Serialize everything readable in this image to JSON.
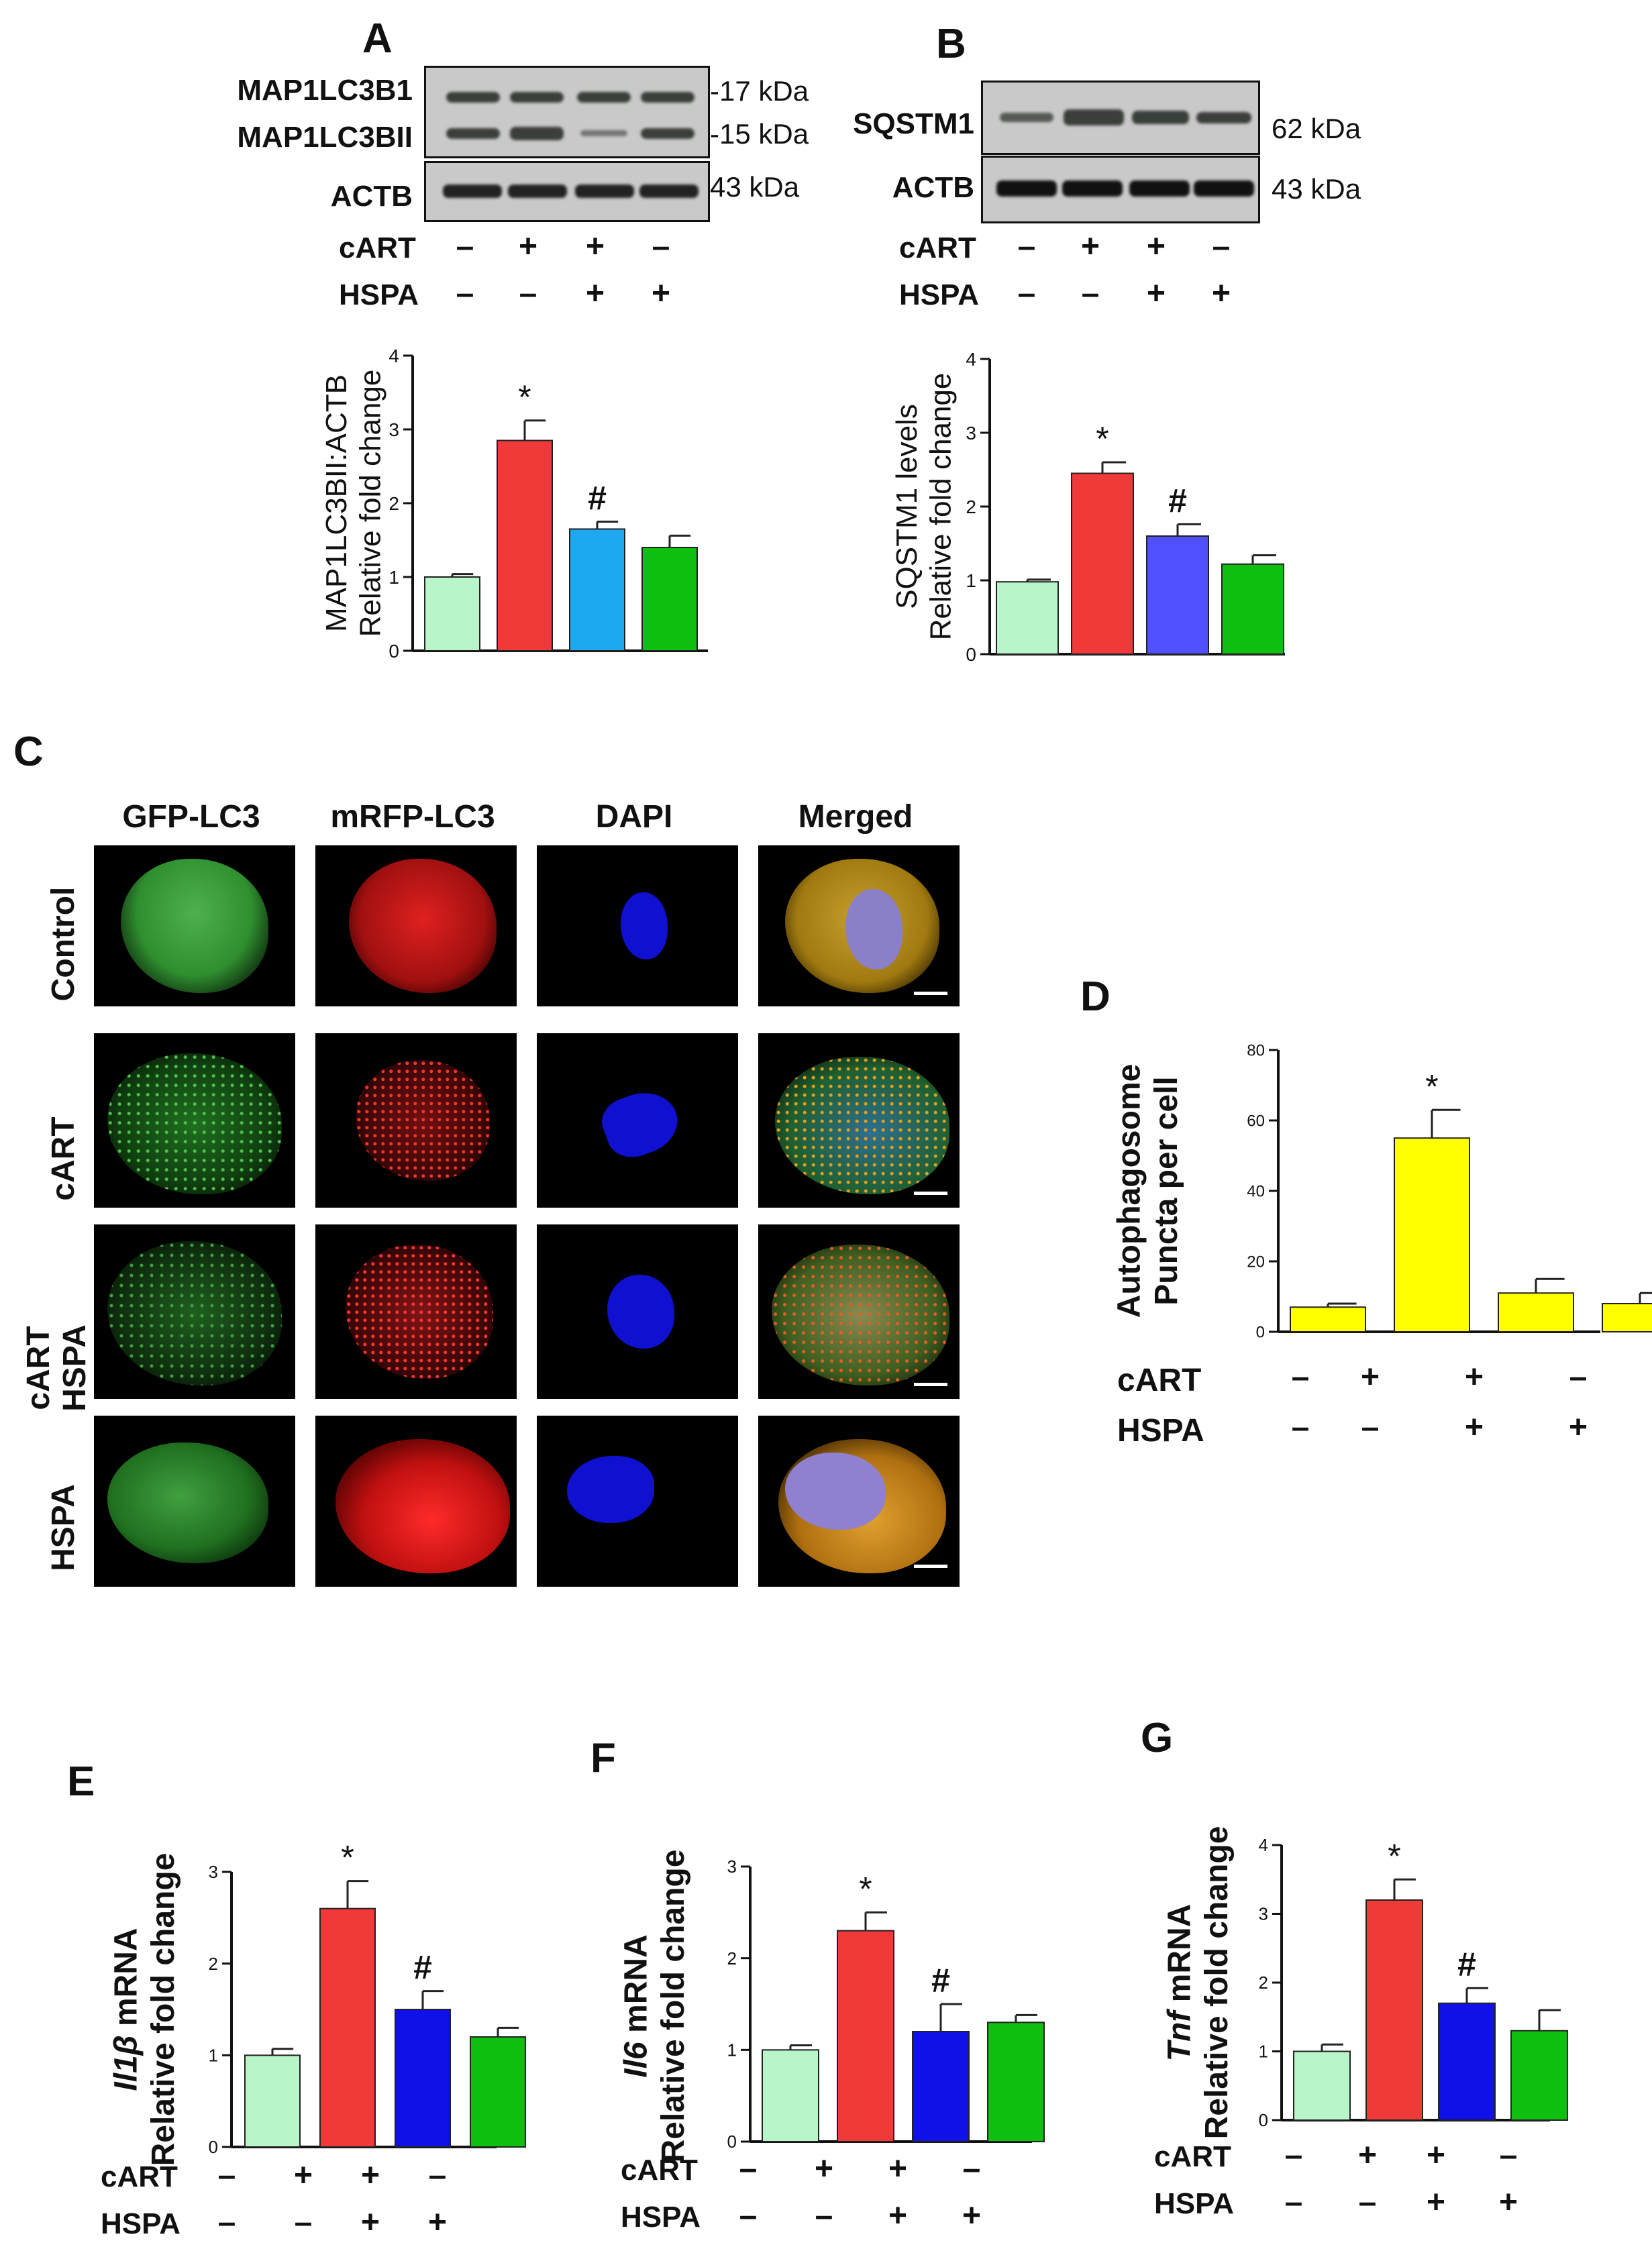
{
  "panels": {
    "A": "A",
    "B": "B",
    "C": "C",
    "D": "D",
    "E": "E",
    "F": "F",
    "G": "G"
  },
  "blot_A": {
    "labels": [
      "MAP1LC3B1",
      "MAP1LC3BII",
      "ACTB"
    ],
    "kda": [
      "-17 kDa",
      "-15 kDa",
      "43 kDa"
    ]
  },
  "blot_B": {
    "labels": [
      "SQSTM1",
      "ACTB"
    ],
    "kda": [
      "62 kDa",
      "43 kDa"
    ]
  },
  "treatments": {
    "cart_label": "cART",
    "hspa_label": "HSPA",
    "cart_signs": [
      "–",
      "+",
      "+",
      "–"
    ],
    "hspa_signs": [
      "–",
      "–",
      "+",
      "+"
    ]
  },
  "microscopy": {
    "columns": [
      "GFP-LC3",
      "mRFP-LC3",
      "DAPI",
      "Merged"
    ],
    "rows": [
      "Control",
      "cART",
      "cART\nHSPA",
      "HSPA"
    ]
  },
  "colors": {
    "light_green": "#b8f5c8",
    "red": "#f03a3a",
    "sky_blue": "#1ea8f0",
    "blue_purple": "#5050ff",
    "blue": "#1010e8",
    "green": "#10c010",
    "yellow": "#ffff00"
  },
  "chart_data": [
    {
      "id": "A",
      "type": "bar",
      "ylabel_lines": [
        "MAP1LC3BII:ACTB",
        "Relative fold change"
      ],
      "ylim": [
        0,
        4
      ],
      "yticks": [
        0,
        1,
        2,
        3,
        4
      ],
      "values": [
        1.0,
        2.85,
        1.65,
        1.4
      ],
      "errors": [
        0.04,
        0.27,
        0.1,
        0.16
      ],
      "annotations": [
        "",
        "*",
        "#",
        ""
      ],
      "colors": [
        "#b8f5c8",
        "#f03a3a",
        "#1ea8f0",
        "#10c010"
      ]
    },
    {
      "id": "B",
      "type": "bar",
      "ylabel_lines": [
        "SQSTM1 levels",
        "Relative fold change"
      ],
      "ylim": [
        0,
        4
      ],
      "yticks": [
        0,
        1,
        2,
        3,
        4
      ],
      "values": [
        0.98,
        2.45,
        1.6,
        1.22
      ],
      "errors": [
        0.03,
        0.15,
        0.16,
        0.12
      ],
      "annotations": [
        "",
        "*",
        "#",
        ""
      ],
      "colors": [
        "#b8f5c8",
        "#f03a3a",
        "#5050ff",
        "#10c010"
      ]
    },
    {
      "id": "D",
      "type": "bar",
      "ylabel_lines": [
        "Autophagosome",
        "Puncta per cell"
      ],
      "ylim": [
        0,
        80
      ],
      "yticks": [
        0,
        20,
        40,
        60,
        80
      ],
      "values": [
        7,
        55,
        11,
        8
      ],
      "errors": [
        1,
        8,
        4,
        3
      ],
      "annotations": [
        "",
        "*",
        "",
        ""
      ],
      "colors": [
        "#ffff00",
        "#ffff00",
        "#ffff00",
        "#ffff00"
      ]
    },
    {
      "id": "E",
      "type": "bar",
      "ylabel_gene": "Il1β",
      "ylabel_rest": " mRNA",
      "ylabel_line2": "Relative fold change",
      "ylim": [
        0,
        3
      ],
      "yticks": [
        0,
        1,
        2,
        3
      ],
      "values": [
        1.0,
        2.6,
        1.5,
        1.2
      ],
      "errors": [
        0.07,
        0.3,
        0.2,
        0.1
      ],
      "annotations": [
        "",
        "*",
        "#",
        ""
      ],
      "colors": [
        "#b8f5c8",
        "#f03a3a",
        "#1010e8",
        "#10c010"
      ]
    },
    {
      "id": "F",
      "type": "bar",
      "ylabel_gene": "Il6",
      "ylabel_rest": " mRNA",
      "ylabel_line2": "Relative fold change",
      "ylim": [
        0,
        3
      ],
      "yticks": [
        0,
        1,
        2,
        3
      ],
      "values": [
        1.0,
        2.3,
        1.2,
        1.3
      ],
      "errors": [
        0.05,
        0.2,
        0.3,
        0.08
      ],
      "annotations": [
        "",
        "*",
        "#",
        ""
      ],
      "colors": [
        "#b8f5c8",
        "#f03a3a",
        "#1010e8",
        "#10c010"
      ]
    },
    {
      "id": "G",
      "type": "bar",
      "ylabel_gene": "Tnf",
      "ylabel_rest": " mRNA",
      "ylabel_line2": "Relative fold change",
      "ylim": [
        0,
        4
      ],
      "yticks": [
        0,
        1,
        2,
        3,
        4
      ],
      "values": [
        1.0,
        3.2,
        1.7,
        1.3
      ],
      "errors": [
        0.1,
        0.3,
        0.22,
        0.3
      ],
      "annotations": [
        "",
        "*",
        "#",
        ""
      ],
      "colors": [
        "#b8f5c8",
        "#f03a3a",
        "#1010e8",
        "#10c010"
      ]
    }
  ]
}
